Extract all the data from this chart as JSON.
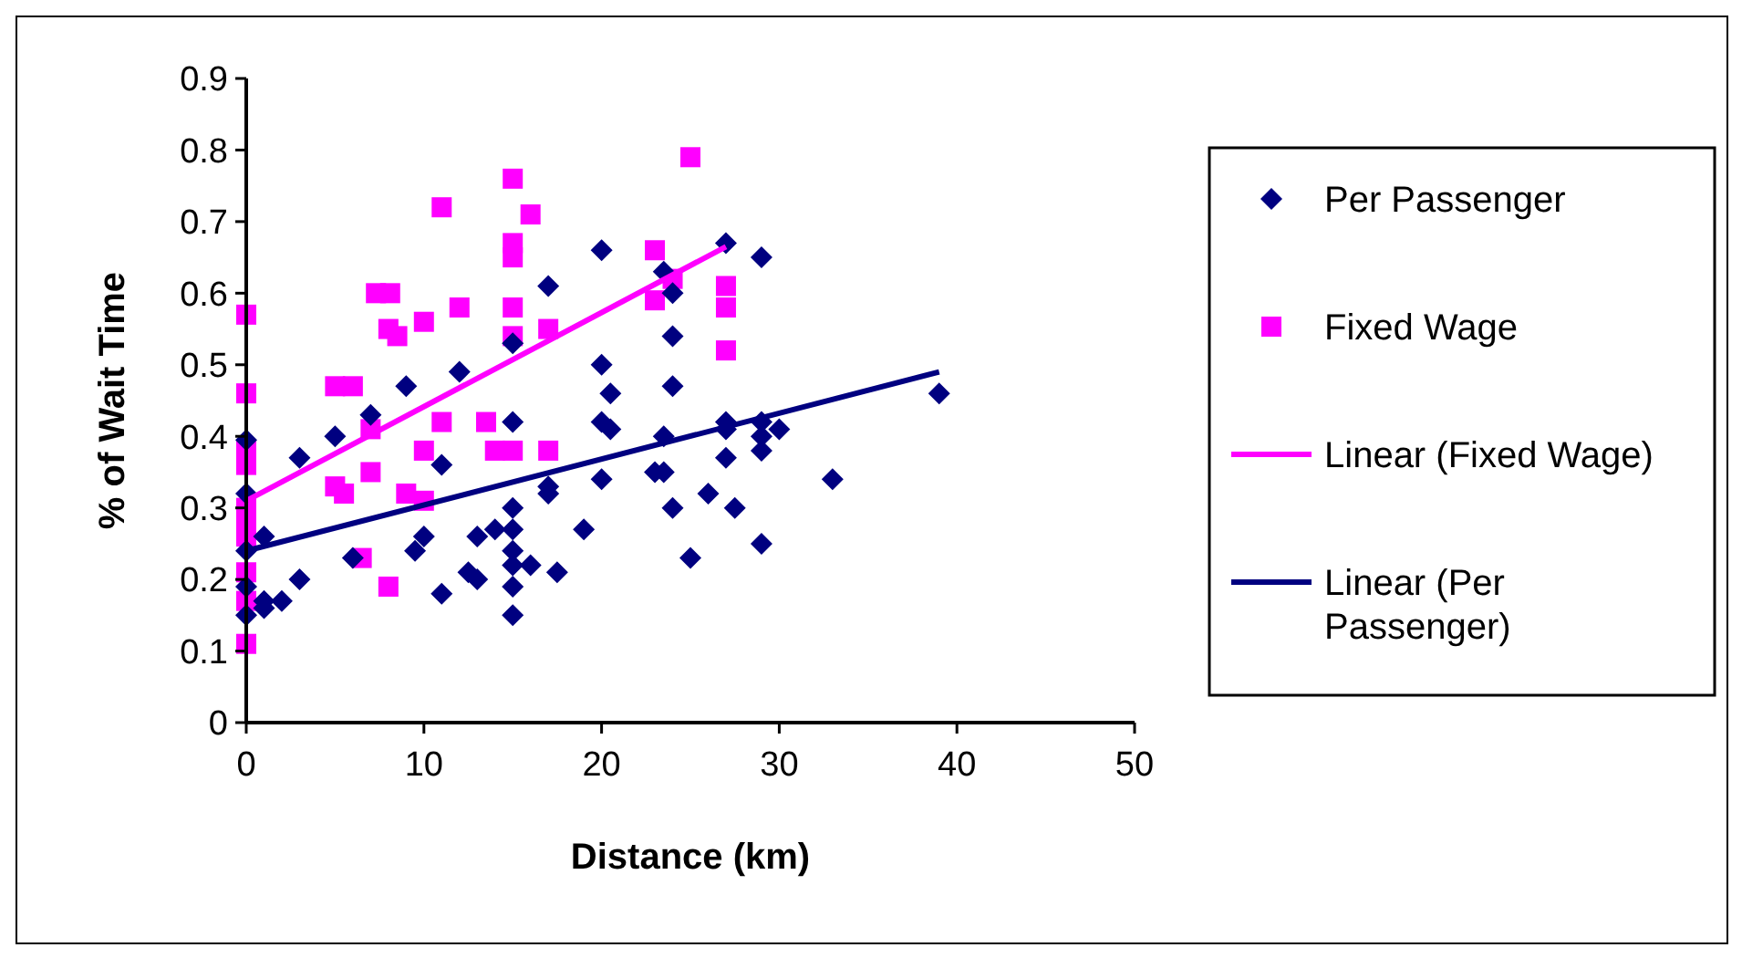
{
  "chart_data": {
    "type": "scatter",
    "xlabel": "Distance (km)",
    "ylabel": "% of Wait Time",
    "xlim": [
      0,
      50
    ],
    "xticks": [
      0,
      10,
      20,
      30,
      40,
      50
    ],
    "ylim": [
      0,
      0.9
    ],
    "yticks": [
      0,
      0.1,
      0.2,
      0.3,
      0.4,
      0.5,
      0.6,
      0.7,
      0.8,
      0.9
    ],
    "grid": false,
    "legend": "right",
    "series": [
      {
        "name": "Per Passenger",
        "color": "#000080",
        "marker": "diamond",
        "x": [
          0,
          0,
          0,
          0,
          0,
          1,
          1,
          1,
          2,
          3,
          3,
          5,
          6,
          7,
          9,
          9.5,
          10,
          11,
          11,
          12,
          12.5,
          13,
          13,
          14,
          15,
          15,
          15,
          15,
          15,
          15,
          15,
          15,
          16,
          17,
          17,
          17,
          17.5,
          19,
          20,
          20,
          20,
          20,
          20.5,
          20.5,
          23,
          23.5,
          23.5,
          23.5,
          24,
          24,
          24,
          24,
          25,
          26,
          27,
          27,
          27,
          27,
          27.5,
          29,
          29,
          29,
          29,
          29,
          30,
          33,
          39
        ],
        "values": [
          0.395,
          0.32,
          0.24,
          0.19,
          0.15,
          0.16,
          0.17,
          0.26,
          0.17,
          0.2,
          0.37,
          0.4,
          0.23,
          0.43,
          0.47,
          0.24,
          0.26,
          0.36,
          0.18,
          0.49,
          0.21,
          0.2,
          0.26,
          0.27,
          0.53,
          0.42,
          0.3,
          0.27,
          0.24,
          0.22,
          0.19,
          0.15,
          0.22,
          0.61,
          0.33,
          0.32,
          0.21,
          0.27,
          0.66,
          0.5,
          0.42,
          0.34,
          0.46,
          0.41,
          0.35,
          0.63,
          0.4,
          0.35,
          0.6,
          0.54,
          0.47,
          0.3,
          0.23,
          0.32,
          0.67,
          0.42,
          0.41,
          0.37,
          0.3,
          0.65,
          0.42,
          0.4,
          0.38,
          0.25,
          0.41,
          0.34,
          0.46
        ]
      },
      {
        "name": "Fixed Wage",
        "color": "#ff00ff",
        "marker": "square",
        "x": [
          0,
          0,
          0,
          0,
          0,
          0,
          0,
          0,
          0,
          0,
          5,
          5,
          5.5,
          6,
          6.5,
          7,
          7,
          7.3,
          8.1,
          8,
          8,
          8.5,
          9,
          10,
          10,
          10,
          11,
          11,
          12,
          13.5,
          14,
          15,
          15,
          15,
          15,
          15,
          15,
          16,
          17,
          17,
          23,
          23,
          24,
          25,
          27,
          27,
          27
        ],
        "values": [
          0.57,
          0.46,
          0.38,
          0.36,
          0.3,
          0.28,
          0.26,
          0.21,
          0.17,
          0.11,
          0.47,
          0.33,
          0.32,
          0.47,
          0.23,
          0.35,
          0.41,
          0.6,
          0.6,
          0.19,
          0.55,
          0.54,
          0.32,
          0.56,
          0.38,
          0.31,
          0.72,
          0.42,
          0.58,
          0.42,
          0.38,
          0.76,
          0.67,
          0.65,
          0.58,
          0.54,
          0.38,
          0.71,
          0.55,
          0.38,
          0.66,
          0.59,
          0.62,
          0.79,
          0.61,
          0.58,
          0.52
        ]
      },
      {
        "name": "Linear (Fixed Wage)",
        "type": "line",
        "color": "#ff00ff",
        "marker": "none",
        "line_style": "solid",
        "x": [
          0,
          27
        ],
        "values": [
          0.31,
          0.665
        ]
      },
      {
        "name": "Linear (Per Passenger)",
        "type": "line",
        "color": "#000080",
        "marker": "none",
        "line_style": "solid",
        "x": [
          0,
          39
        ],
        "values": [
          0.24,
          0.49
        ]
      }
    ]
  }
}
